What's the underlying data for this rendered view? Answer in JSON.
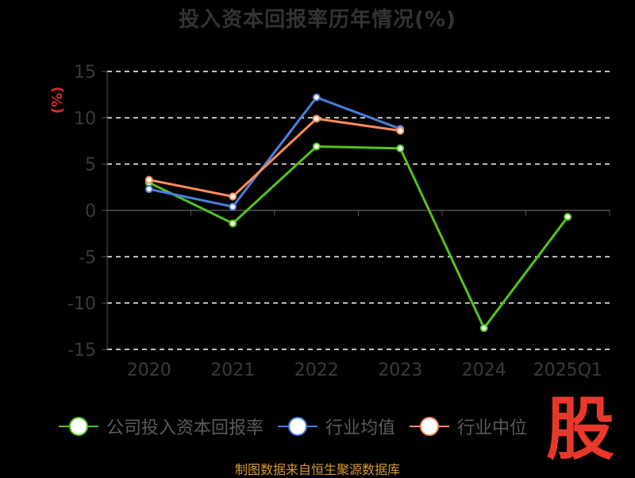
{
  "title": "投入资本回报率历年情况(%)",
  "source": "制图数据来自恒生聚源数据库",
  "logo_text": "股",
  "chart_data": {
    "type": "line",
    "title": "投入资本回报率历年情况(%)",
    "ylabel": "(%)",
    "xlabel": "",
    "categories": [
      "2020",
      "2021",
      "2022",
      "2023",
      "2024",
      "2025Q1"
    ],
    "ylim": [
      -15,
      15
    ],
    "yticks": [
      15,
      10,
      5,
      0,
      -5,
      -10,
      -15
    ],
    "grid": true,
    "legend_position": "bottom",
    "series": [
      {
        "name": "公司投入资本回报率",
        "color": "#52c41a",
        "values": [
          3.0,
          -1.4,
          6.9,
          6.7,
          -12.7,
          -0.7
        ]
      },
      {
        "name": "行业均值",
        "color": "#4a7fdf",
        "values": [
          2.3,
          0.4,
          12.2,
          8.8,
          null,
          null
        ]
      },
      {
        "name": "行业中位",
        "color": "#ff8c5a",
        "values": [
          3.3,
          1.5,
          9.9,
          8.6,
          null,
          null
        ]
      }
    ]
  }
}
